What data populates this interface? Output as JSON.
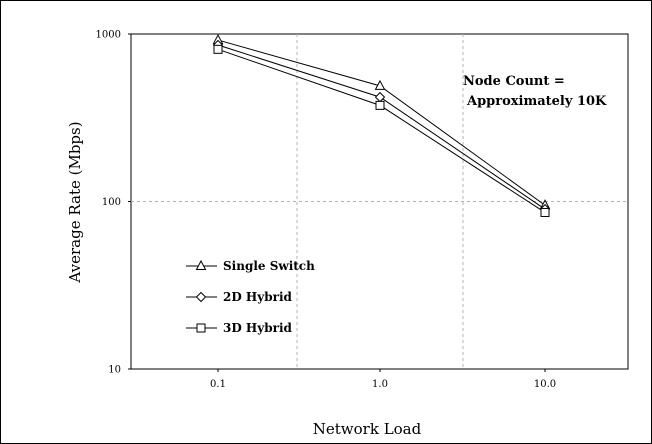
{
  "chart_data": {
    "type": "line",
    "title": "",
    "xlabel": "Network Load",
    "ylabel": "Average Rate (Mbps)",
    "x_scale": "log",
    "y_scale": "log",
    "x": [
      0.1,
      1.0,
      10.0
    ],
    "x_tick_labels": [
      "0.1",
      "1.0",
      "10.0"
    ],
    "y_ticks": [
      10,
      100,
      1000
    ],
    "y_tick_labels": [
      "10",
      "100",
      "1000"
    ],
    "ylim": [
      10,
      1000
    ],
    "grid": true,
    "legend_position": "lower-left",
    "series": [
      {
        "name": "Single Switch",
        "marker": "triangle",
        "values": [
          920,
          490,
          95
        ]
      },
      {
        "name": "2D Hybrid",
        "marker": "diamond",
        "values": [
          860,
          420,
          90
        ]
      },
      {
        "name": "3D Hybrid",
        "marker": "square",
        "values": [
          810,
          375,
          86
        ]
      }
    ],
    "annotation": {
      "lines": [
        "Node Count =",
        "Approximately 10K"
      ]
    }
  }
}
